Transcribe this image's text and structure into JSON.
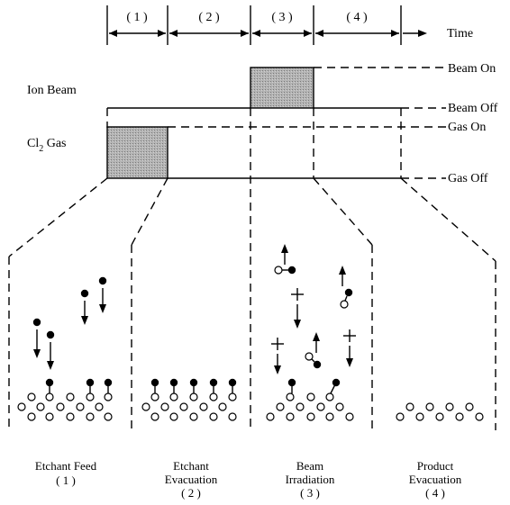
{
  "timeline": {
    "phases": [
      "( 1 )",
      "( 2 )",
      "( 3 )",
      "( 4 )"
    ],
    "time_label": "Time"
  },
  "signals": {
    "ion_beam": {
      "label": "Ion Beam",
      "on_label": "Beam On",
      "off_label": "Beam Off",
      "active_phase": 3
    },
    "cl2_gas": {
      "label_main": "Cl",
      "label_sub": "2",
      "label_rest": " Gas",
      "on_label": "Gas On",
      "off_label": "Gas Off",
      "active_phase": 1
    }
  },
  "panels": [
    {
      "phase": 1,
      "title": "Etchant Feed",
      "subtitle": "( 1 )"
    },
    {
      "phase": 2,
      "title_line1": "Etchant",
      "title_line2": "Evacuation",
      "subtitle": "( 2 )"
    },
    {
      "phase": 3,
      "title_line1": "Beam",
      "title_line2": "Irradiation",
      "subtitle": "( 3 )"
    },
    {
      "phase": 4,
      "title_line1": "Product",
      "title_line2": "Evacuation",
      "subtitle": "( 4 )"
    }
  ],
  "colors": {
    "line": "#000000",
    "shade": "#a9a9a9",
    "background": "#ffffff"
  }
}
